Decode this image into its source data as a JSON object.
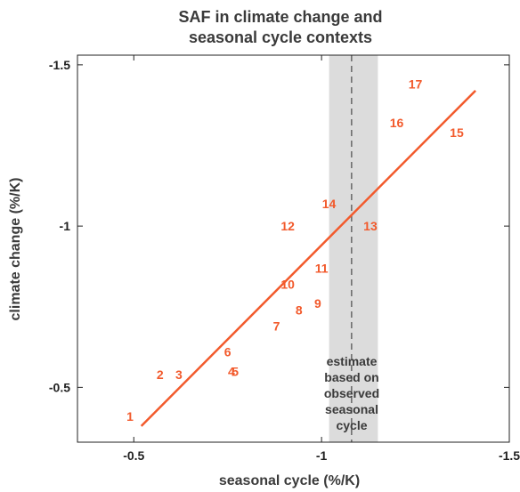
{
  "chart_data": {
    "type": "scatter",
    "title_line1": "SAF in climate change and",
    "title_line2": "seasonal cycle contexts",
    "xlabel": "seasonal cycle (%/K)",
    "ylabel": "climate change (%/K)",
    "xlim": [
      -0.35,
      -1.5
    ],
    "ylim": [
      -0.33,
      -1.53
    ],
    "x_reversed": true,
    "y_reversed": true,
    "xticks": [
      -0.5,
      -1.0,
      -1.5
    ],
    "xtick_labels": [
      "-0.5",
      "-1",
      "-1.5"
    ],
    "yticks": [
      -0.5,
      -1.0,
      -1.5
    ],
    "ytick_labels": [
      "-0.5",
      "-1",
      "-1.5"
    ],
    "points": [
      {
        "label": "1",
        "x": -0.49,
        "y": -0.41
      },
      {
        "label": "2",
        "x": -0.57,
        "y": -0.54
      },
      {
        "label": "3",
        "x": -0.62,
        "y": -0.54
      },
      {
        "label": "4",
        "x": -0.76,
        "y": -0.55
      },
      {
        "label": "5",
        "x": -0.77,
        "y": -0.55
      },
      {
        "label": "6",
        "x": -0.75,
        "y": -0.61
      },
      {
        "label": "7",
        "x": -0.88,
        "y": -0.69
      },
      {
        "label": "8",
        "x": -0.94,
        "y": -0.74
      },
      {
        "label": "9",
        "x": -0.99,
        "y": -0.76
      },
      {
        "label": "10",
        "x": -0.91,
        "y": -0.82
      },
      {
        "label": "11",
        "x": -1.0,
        "y": -0.87
      },
      {
        "label": "12",
        "x": -0.91,
        "y": -1.0
      },
      {
        "label": "13",
        "x": -1.13,
        "y": -1.0
      },
      {
        "label": "14",
        "x": -1.02,
        "y": -1.07
      },
      {
        "label": "15",
        "x": -1.36,
        "y": -1.29
      },
      {
        "label": "16",
        "x": -1.2,
        "y": -1.32
      },
      {
        "label": "17",
        "x": -1.25,
        "y": -1.44
      }
    ],
    "fit_line": {
      "x": [
        -0.52,
        -1.41
      ],
      "y": [
        -0.38,
        -1.42
      ]
    },
    "estimate": {
      "x": -1.08,
      "band": [
        -1.02,
        -1.15
      ]
    },
    "annotation_lines": [
      "estimate",
      "based on",
      "observed",
      "seasonal",
      "cycle"
    ],
    "colors": {
      "points": "#f25a2c",
      "fit_line": "#f25a2c",
      "band": "#dcdcdc",
      "estimate_line": "#555555",
      "axes": "#222222",
      "text": "#3a3a3a"
    },
    "grid": false
  }
}
